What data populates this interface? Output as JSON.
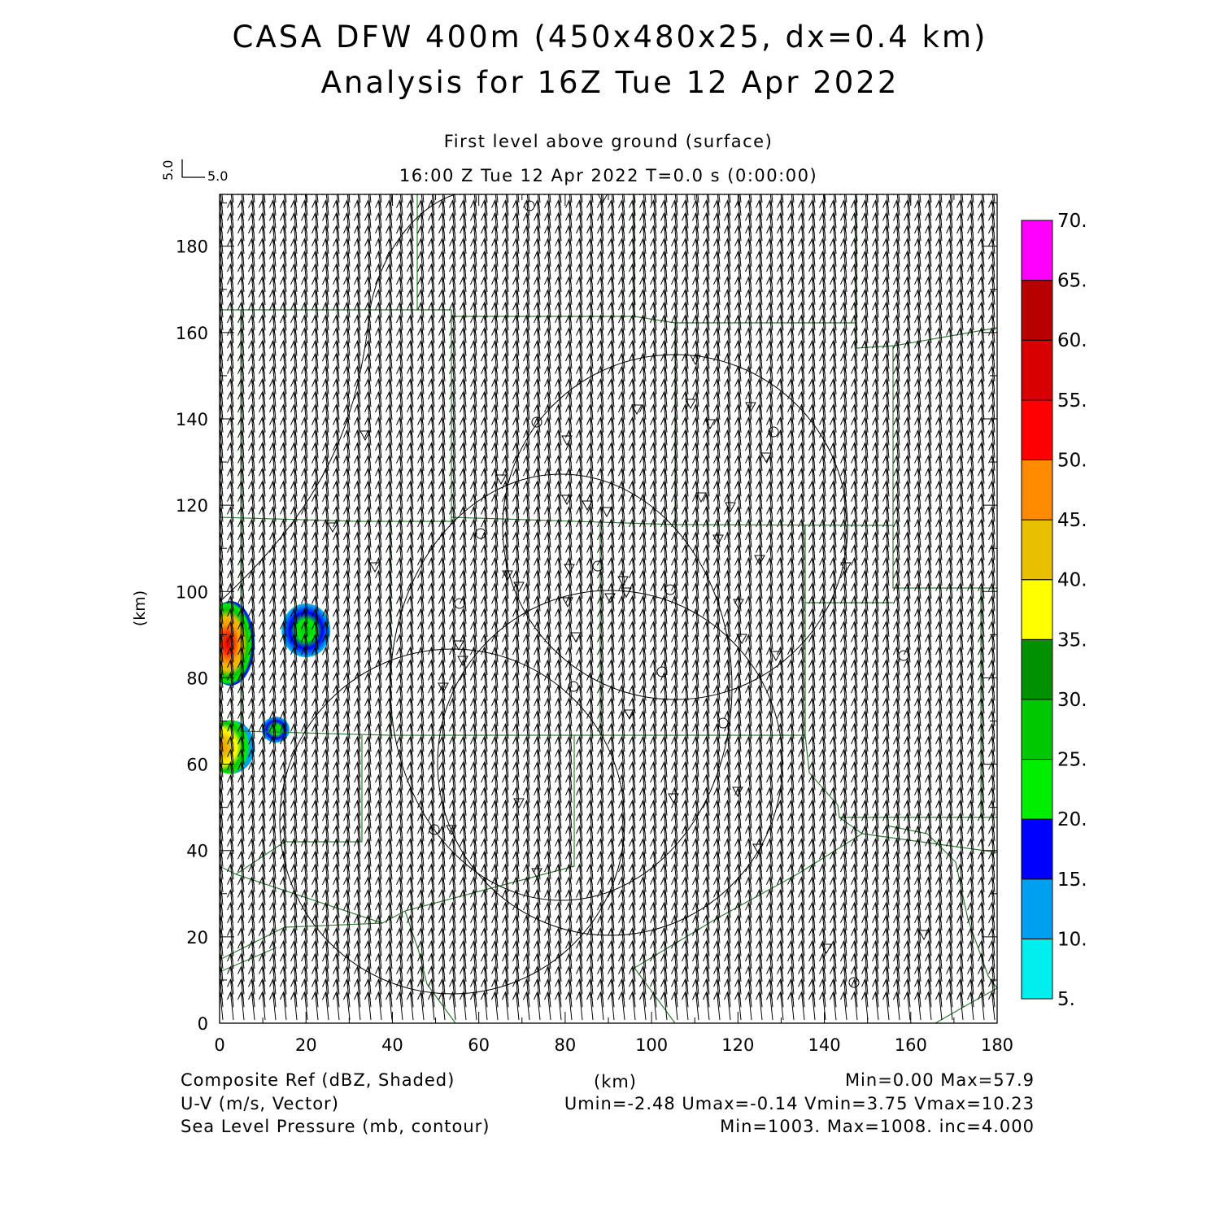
{
  "title": {
    "line1": "CASA DFW 400m (450x480x25, dx=0.4 km)",
    "line2": "Analysis for 16Z Tue 12 Apr 2022"
  },
  "subtitle": {
    "level": "First level above ground (surface)",
    "time": "16:00 Z Tue 12 Apr 2022    T=0.0 s (0:00:00)"
  },
  "vector_key": {
    "u_label": "5.0",
    "v_label": "5.0"
  },
  "axes": {
    "x_label": "(km)",
    "y_label": "(km)",
    "x_ticks": [
      "0",
      "20",
      "40",
      "60",
      "80",
      "100",
      "120",
      "140",
      "160",
      "180"
    ],
    "y_ticks": [
      "0",
      "20",
      "40",
      "60",
      "80",
      "100",
      "120",
      "140",
      "160",
      "180"
    ],
    "x_range": [
      0,
      180
    ],
    "y_range": [
      0,
      192
    ]
  },
  "colorbar": {
    "labels": [
      "5.",
      "10.",
      "15.",
      "20.",
      "25.",
      "30.",
      "35.",
      "40.",
      "45.",
      "50.",
      "55.",
      "60.",
      "65.",
      "70."
    ],
    "colors": [
      "#00eeee",
      "#00a0f0",
      "#0000ff",
      "#00ee00",
      "#00c800",
      "#009000",
      "#ffff00",
      "#e8c000",
      "#ff8c00",
      "#ff0000",
      "#d80000",
      "#b80000",
      "#ff00ff"
    ]
  },
  "footer": {
    "field1_name": "Composite Ref (dBZ, Shaded)",
    "field1_stats": "Min=0.00 Max=57.9",
    "field2_name": "U-V (m/s, Vector)",
    "field2_stats": "Umin=-2.48 Umax=-0.14 Vmin=3.75 Vmax=10.23",
    "field3_name": "Sea Level Pressure (mb, contour)",
    "field3_stats": "Min=1003. Max=1008. inc=4.000"
  },
  "colors": {
    "boundaries": "#2e7d32",
    "vectors": "#000000",
    "contours": "#000000"
  },
  "reflectivity_cells": [
    {
      "x": 2.5,
      "y": 88,
      "peak_dbz": 57.9
    },
    {
      "x": 20,
      "y": 91,
      "peak_dbz": 30
    },
    {
      "x": 2.5,
      "y": 64,
      "peak_dbz": 42
    },
    {
      "x": 13,
      "y": 68,
      "peak_dbz": 25
    }
  ]
}
